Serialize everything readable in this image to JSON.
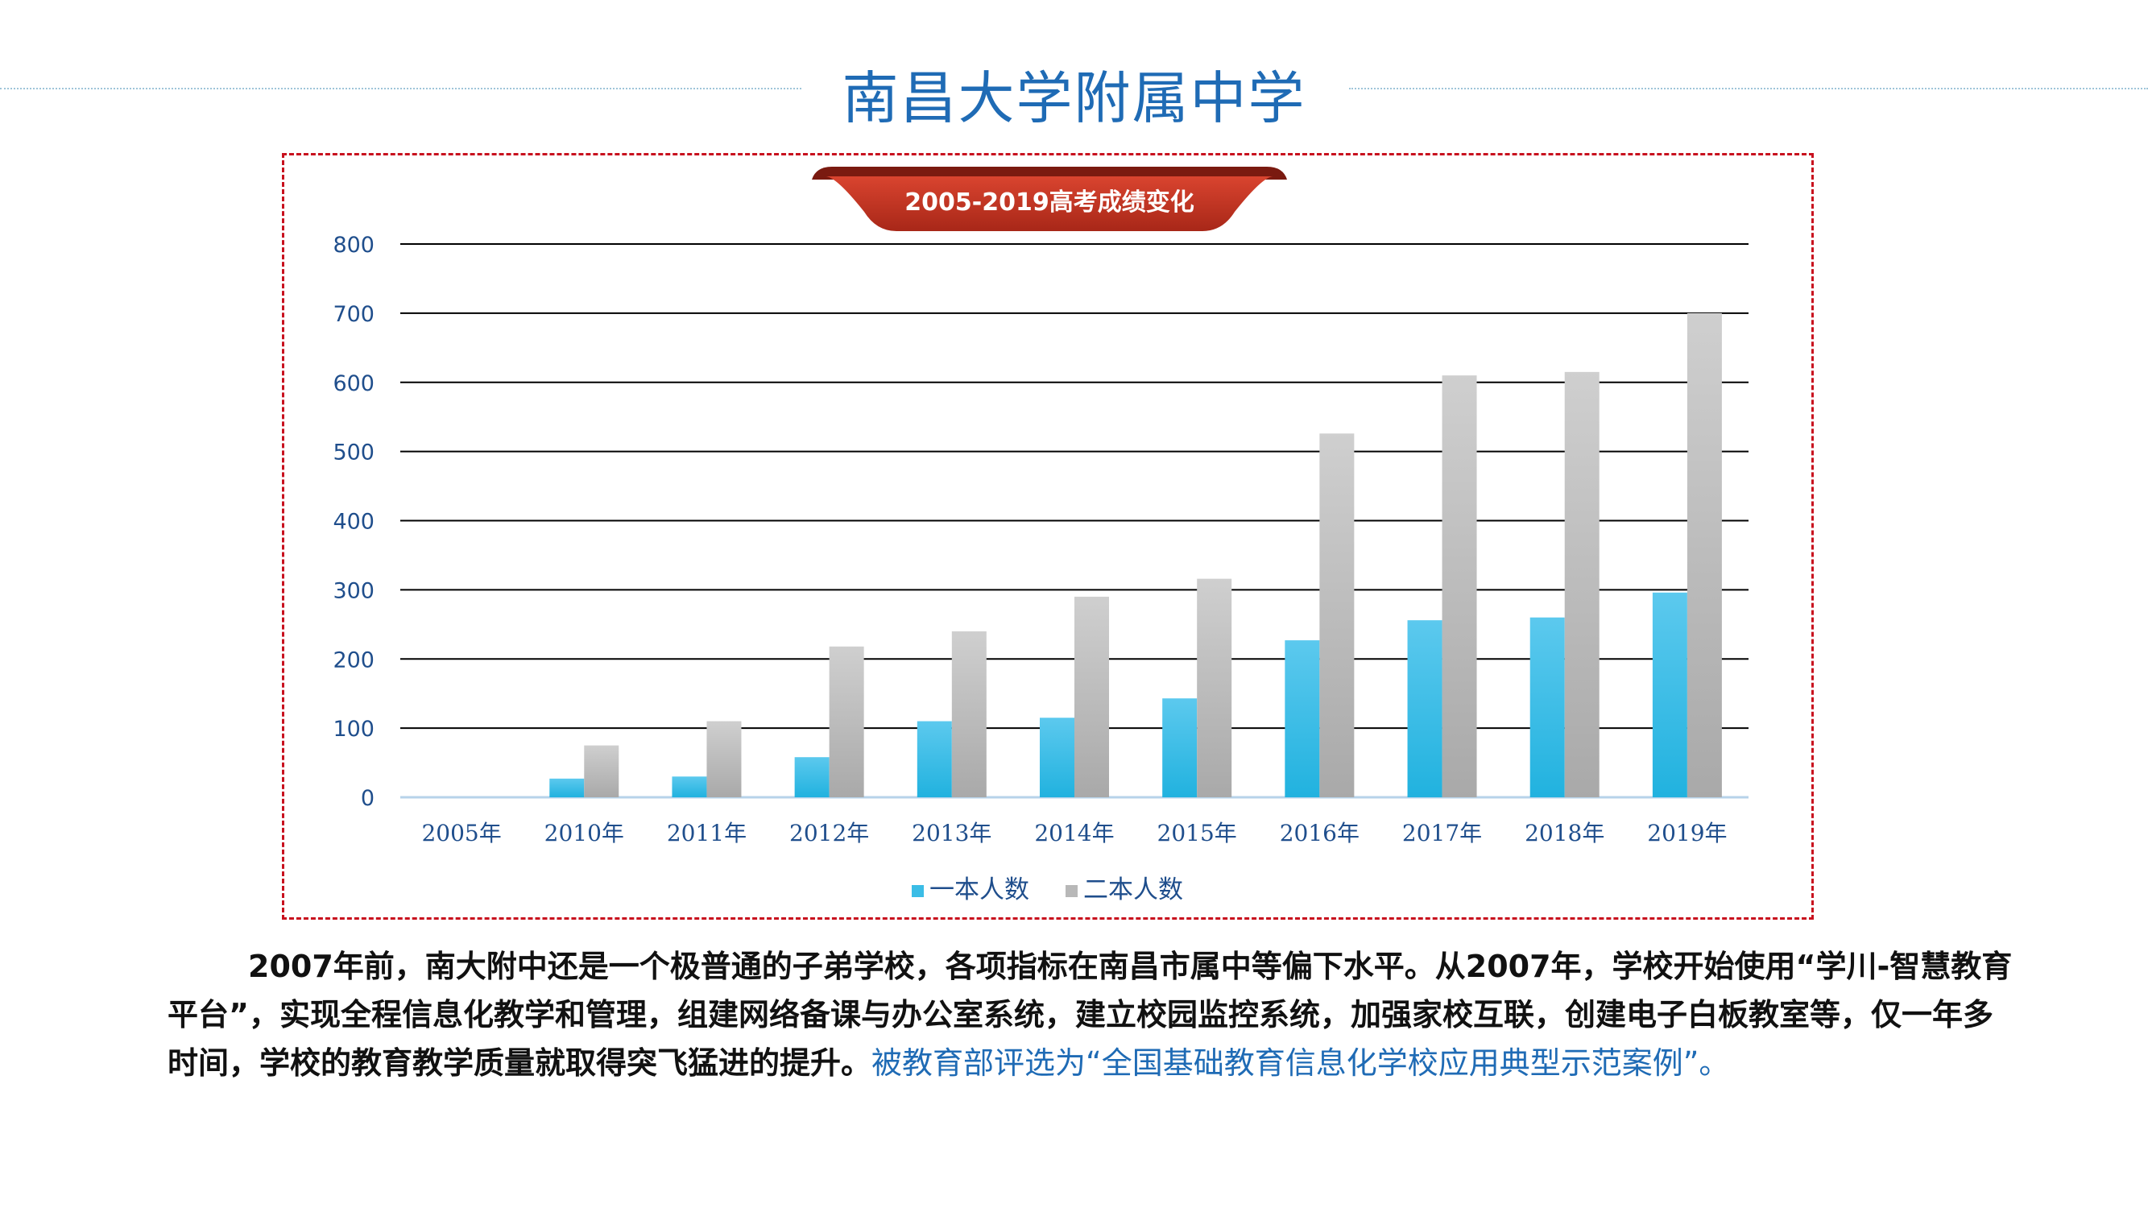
{
  "header": {
    "title": "南昌大学附属中学"
  },
  "chart_data": {
    "type": "bar",
    "title": "2005-2019高考成绩变化",
    "categories": [
      "2005年",
      "2010年",
      "2011年",
      "2012年",
      "2013年",
      "2014年",
      "2015年",
      "2016年",
      "2017年",
      "2018年",
      "2019年"
    ],
    "series": [
      {
        "name": "一本人数",
        "values": [
          0,
          27,
          30,
          58,
          110,
          115,
          143,
          227,
          256,
          260,
          296
        ],
        "color": "#3bbde6"
      },
      {
        "name": "二本人数",
        "values": [
          0,
          75,
          110,
          218,
          240,
          290,
          316,
          526,
          610,
          615,
          700
        ],
        "color": "#b8b8b8"
      }
    ],
    "ylim": [
      0,
      800
    ],
    "yticks": [
      0,
      100,
      200,
      300,
      400,
      500,
      600,
      700,
      800
    ],
    "grid": true,
    "legend": "bottom",
    "xlabel": "",
    "ylabel": "",
    "colors": {
      "axis_text": "#1f4e8c",
      "grid": "#000000",
      "banner": "#c0392b"
    }
  },
  "description": {
    "part1": "2007年前，南大附中还是一个极普通的子弟学校，各项指标在南昌市属中等偏下水平。从2007年，学校开始使用“学川-智慧教育平台”，实现全程信息化教学和管理，组建网络备课与办公室系统，建立校园监控系统，加强家校互联，创建电子白板教室等，仅一年多时间，学校的教育教学质量就取得突飞猛进的提升。",
    "part2": "被教育部评选为“全国基础教育信息化学校应用典型示范案例”。"
  }
}
